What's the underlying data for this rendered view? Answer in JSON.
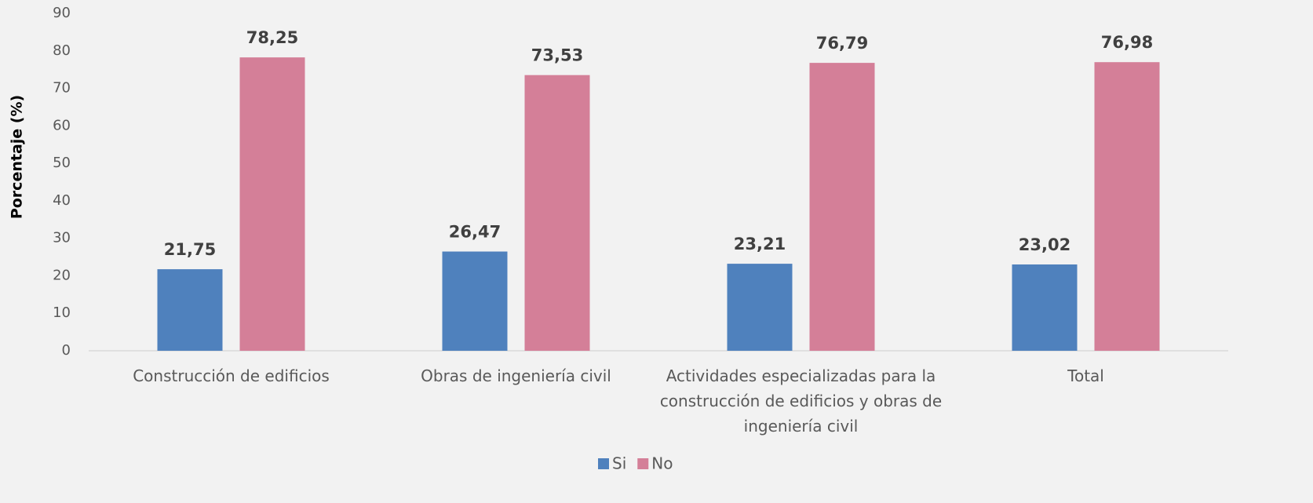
{
  "chart_data": {
    "type": "bar",
    "y_label": "Porcentaje (%)",
    "categories": [
      "Construcción de edificios",
      "Obras de ingeniería civil",
      "Actividades especializadas para la construcción de edificios y obras de ingeniería civil",
      "Total"
    ],
    "series": [
      {
        "name": "Si",
        "color": "#4f81bd",
        "values": [
          21.75,
          26.47,
          23.21,
          23.02
        ],
        "value_labels": [
          "21,75",
          "26,47",
          "23,21",
          "23,02"
        ]
      },
      {
        "name": "No",
        "color": "#d47f98",
        "values": [
          78.25,
          73.53,
          76.79,
          76.98
        ],
        "value_labels": [
          "78,25",
          "73,53",
          "76,79",
          "76,98"
        ]
      }
    ],
    "ylim": [
      0,
      90
    ],
    "yticks": [
      0,
      10,
      20,
      30,
      40,
      50,
      60,
      70,
      80,
      90
    ],
    "grid": false,
    "legend": "bottom"
  }
}
